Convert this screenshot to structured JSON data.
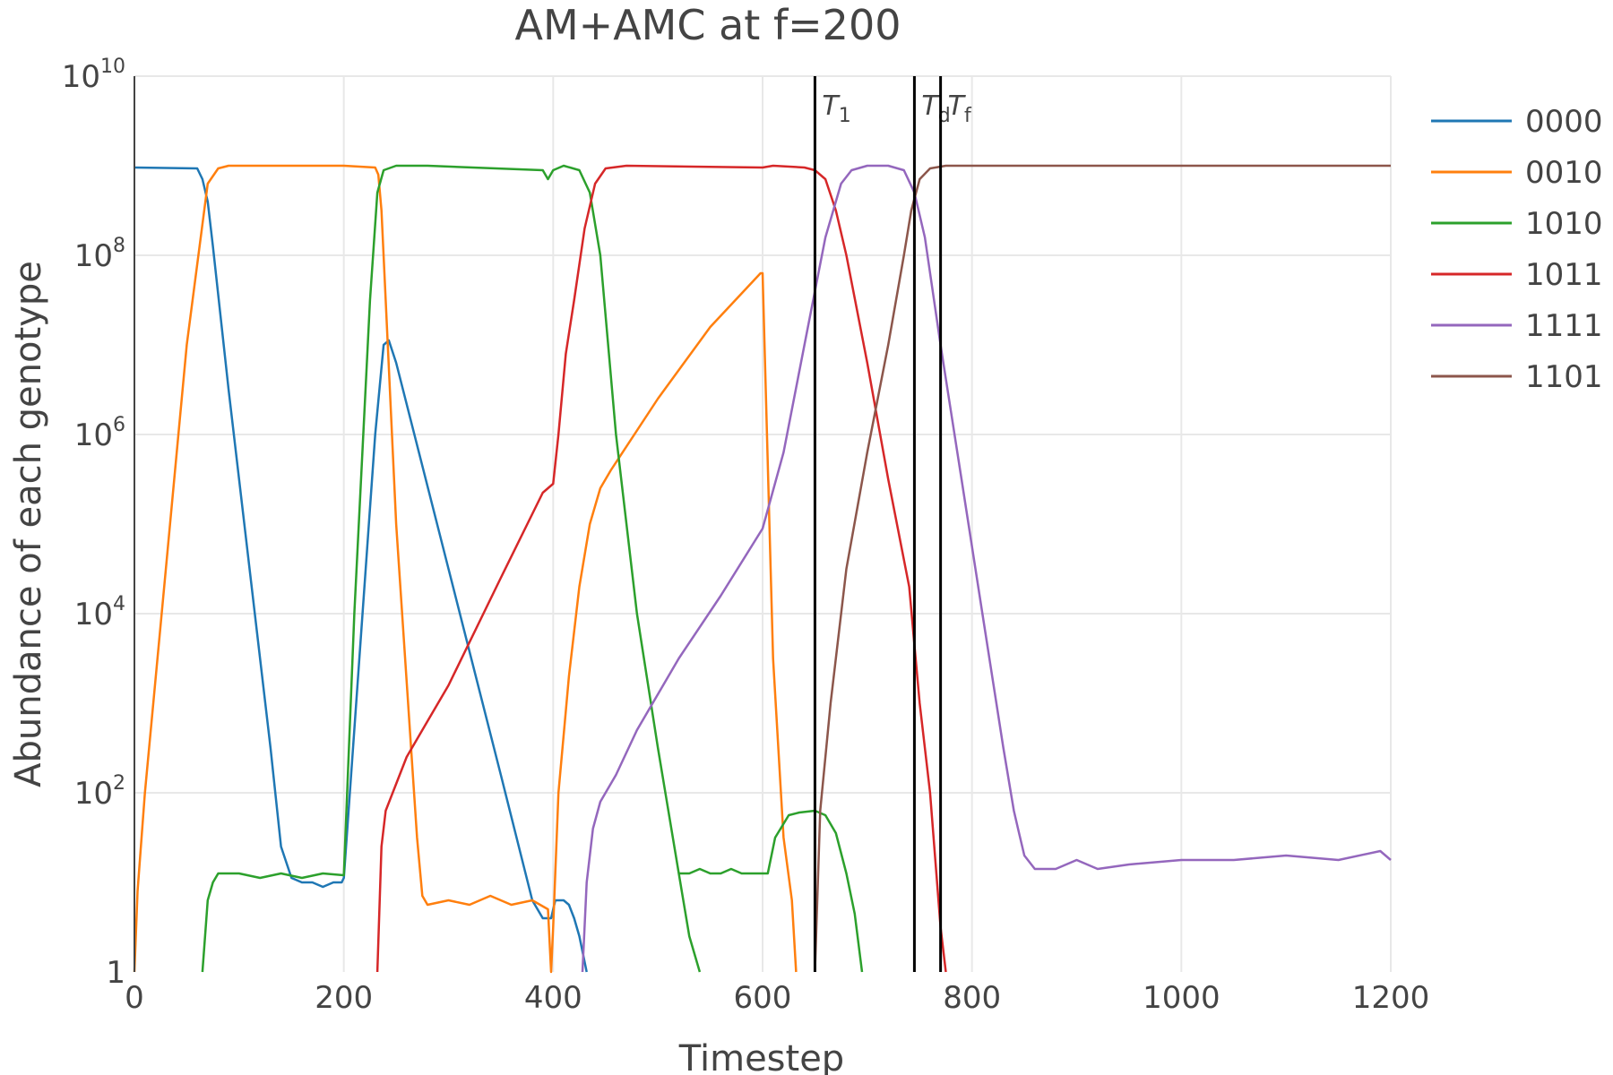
{
  "chart_data": {
    "type": "line",
    "title": "AM+AMC at f=200",
    "xlabel": "Timestep",
    "ylabel": "Abundance of each genotype",
    "xlim": [
      0,
      1200
    ],
    "ylim_log10": [
      0,
      10
    ],
    "y_scale": "log",
    "grid": true,
    "legend_placement": "top-right",
    "x_ticks": [
      "0",
      "200",
      "400",
      "600",
      "800",
      "1000",
      "1200"
    ],
    "x_tick_values": [
      0,
      200,
      400,
      600,
      800,
      1000,
      1200
    ],
    "y_ticks": [
      {
        "value": 0,
        "base": "1",
        "exp": ""
      },
      {
        "value": 2,
        "base": "10",
        "exp": "2"
      },
      {
        "value": 4,
        "base": "10",
        "exp": "4"
      },
      {
        "value": 6,
        "base": "10",
        "exp": "6"
      },
      {
        "value": 8,
        "base": "10",
        "exp": "8"
      },
      {
        "value": 10,
        "base": "10",
        "exp": "10"
      }
    ],
    "vertical_lines": [
      {
        "x": 650,
        "label": "T",
        "sub": "1"
      },
      {
        "x": 745,
        "label": "T",
        "sub": "d"
      },
      {
        "x": 770,
        "label": "T",
        "sub": "f"
      }
    ],
    "series": [
      {
        "name": "0000",
        "color": "#1f77b4",
        "points": [
          [
            0,
            8.98
          ],
          [
            60,
            8.97
          ],
          [
            65,
            8.85
          ],
          [
            70,
            8.6
          ],
          [
            75,
            8.1
          ],
          [
            90,
            6.5
          ],
          [
            130,
            2.5
          ],
          [
            140,
            1.4
          ],
          [
            150,
            1.05
          ],
          [
            160,
            1.0
          ],
          [
            170,
            1.0
          ],
          [
            180,
            0.95
          ],
          [
            190,
            1.0
          ],
          [
            198,
            1.0
          ],
          [
            200,
            1.05
          ],
          [
            230,
            6.0
          ],
          [
            238,
            7.0
          ],
          [
            243,
            7.05
          ],
          [
            250,
            6.8
          ],
          [
            300,
            4.5
          ],
          [
            350,
            2.2
          ],
          [
            380,
            0.8
          ],
          [
            390,
            0.6
          ],
          [
            398,
            0.6
          ],
          [
            402,
            0.8
          ],
          [
            410,
            0.8
          ],
          [
            415,
            0.75
          ],
          [
            420,
            0.6
          ],
          [
            425,
            0.4
          ],
          [
            432,
            0.0
          ]
        ]
      },
      {
        "name": "0010",
        "color": "#ff7f0e",
        "points": [
          [
            0,
            0.0
          ],
          [
            3,
            0.9
          ],
          [
            10,
            2.0
          ],
          [
            30,
            4.5
          ],
          [
            50,
            7.0
          ],
          [
            70,
            8.8
          ],
          [
            80,
            8.97
          ],
          [
            90,
            9.0
          ],
          [
            200,
            9.0
          ],
          [
            230,
            8.98
          ],
          [
            233,
            8.9
          ],
          [
            236,
            8.5
          ],
          [
            240,
            7.5
          ],
          [
            250,
            5.0
          ],
          [
            270,
            1.5
          ],
          [
            275,
            0.85
          ],
          [
            280,
            0.75
          ],
          [
            300,
            0.8
          ],
          [
            320,
            0.75
          ],
          [
            340,
            0.85
          ],
          [
            360,
            0.75
          ],
          [
            380,
            0.8
          ],
          [
            395,
            0.7
          ],
          [
            398,
            0.0
          ],
          [
            400,
            0.5
          ],
          [
            405,
            2.0
          ],
          [
            415,
            3.3
          ],
          [
            425,
            4.3
          ],
          [
            435,
            5.0
          ],
          [
            445,
            5.4
          ],
          [
            455,
            5.6
          ],
          [
            500,
            6.4
          ],
          [
            550,
            7.2
          ],
          [
            598,
            7.8
          ],
          [
            600,
            7.8
          ],
          [
            610,
            3.5
          ],
          [
            620,
            1.5
          ],
          [
            628,
            0.8
          ],
          [
            632,
            0.0
          ]
        ]
      },
      {
        "name": "1010",
        "color": "#2ca02c",
        "points": [
          [
            65,
            0.0
          ],
          [
            70,
            0.8
          ],
          [
            75,
            1.0
          ],
          [
            80,
            1.1
          ],
          [
            100,
            1.1
          ],
          [
            120,
            1.05
          ],
          [
            140,
            1.1
          ],
          [
            160,
            1.05
          ],
          [
            180,
            1.1
          ],
          [
            200,
            1.08
          ],
          [
            210,
            4.0
          ],
          [
            225,
            7.5
          ],
          [
            232,
            8.7
          ],
          [
            238,
            8.95
          ],
          [
            250,
            9.0
          ],
          [
            280,
            9.0
          ],
          [
            390,
            8.95
          ],
          [
            395,
            8.85
          ],
          [
            400,
            8.95
          ],
          [
            410,
            9.0
          ],
          [
            425,
            8.95
          ],
          [
            435,
            8.7
          ],
          [
            445,
            8.0
          ],
          [
            460,
            6.0
          ],
          [
            480,
            4.0
          ],
          [
            500,
            2.5
          ],
          [
            520,
            1.1
          ],
          [
            530,
            0.4
          ],
          [
            540,
            0.0
          ]
        ]
      },
      {
        "name": "1010_continued",
        "color": "#2ca02c",
        "points": [
          [
            520,
            1.1
          ],
          [
            530,
            1.1
          ],
          [
            540,
            1.15
          ],
          [
            550,
            1.1
          ],
          [
            560,
            1.1
          ],
          [
            570,
            1.15
          ],
          [
            580,
            1.1
          ],
          [
            600,
            1.1
          ],
          [
            605,
            1.1
          ],
          [
            612,
            1.5
          ],
          [
            625,
            1.75
          ],
          [
            635,
            1.78
          ],
          [
            650,
            1.8
          ],
          [
            660,
            1.75
          ],
          [
            670,
            1.55
          ],
          [
            680,
            1.1
          ],
          [
            688,
            0.65
          ],
          [
            695,
            0.0
          ]
        ]
      },
      {
        "name": "1011",
        "color": "#d62728",
        "points": [
          [
            232,
            0.0
          ],
          [
            236,
            1.4
          ],
          [
            240,
            1.8
          ],
          [
            250,
            2.1
          ],
          [
            260,
            2.4
          ],
          [
            280,
            2.8
          ],
          [
            300,
            3.2
          ],
          [
            350,
            4.4
          ],
          [
            390,
            5.35
          ],
          [
            400,
            5.45
          ],
          [
            405,
            6.0
          ],
          [
            412,
            6.9
          ],
          [
            420,
            7.5
          ],
          [
            430,
            8.3
          ],
          [
            440,
            8.8
          ],
          [
            450,
            8.97
          ],
          [
            470,
            9.0
          ],
          [
            600,
            8.98
          ],
          [
            610,
            9.0
          ],
          [
            640,
            8.98
          ],
          [
            650,
            8.95
          ],
          [
            660,
            8.85
          ],
          [
            670,
            8.5
          ],
          [
            680,
            8.0
          ],
          [
            700,
            6.8
          ],
          [
            720,
            5.5
          ],
          [
            740,
            4.3
          ],
          [
            750,
            3.0
          ],
          [
            760,
            2.0
          ],
          [
            770,
            0.5
          ],
          [
            775,
            0.0
          ]
        ]
      },
      {
        "name": "1111",
        "color": "#9467bd",
        "points": [
          [
            428,
            0.0
          ],
          [
            432,
            1.0
          ],
          [
            438,
            1.6
          ],
          [
            445,
            1.9
          ],
          [
            460,
            2.2
          ],
          [
            480,
            2.7
          ],
          [
            520,
            3.5
          ],
          [
            560,
            4.2
          ],
          [
            600,
            4.95
          ],
          [
            620,
            5.8
          ],
          [
            640,
            7.0
          ],
          [
            660,
            8.2
          ],
          [
            675,
            8.8
          ],
          [
            685,
            8.95
          ],
          [
            700,
            9.0
          ],
          [
            720,
            9.0
          ],
          [
            735,
            8.95
          ],
          [
            745,
            8.7
          ],
          [
            755,
            8.2
          ],
          [
            770,
            7.0
          ],
          [
            790,
            5.5
          ],
          [
            810,
            4.0
          ],
          [
            830,
            2.5
          ],
          [
            840,
            1.8
          ],
          [
            845,
            1.55
          ],
          [
            850,
            1.3
          ],
          [
            860,
            1.15
          ],
          [
            880,
            1.15
          ],
          [
            900,
            1.25
          ],
          [
            920,
            1.15
          ],
          [
            950,
            1.2
          ],
          [
            1000,
            1.25
          ],
          [
            1050,
            1.25
          ],
          [
            1100,
            1.3
          ],
          [
            1150,
            1.25
          ],
          [
            1190,
            1.35
          ],
          [
            1200,
            1.25
          ]
        ]
      },
      {
        "name": "1101",
        "color": "#8c564b",
        "points": [
          [
            650,
            0.0
          ],
          [
            655,
            1.8
          ],
          [
            665,
            3.0
          ],
          [
            680,
            4.5
          ],
          [
            700,
            5.8
          ],
          [
            720,
            7.0
          ],
          [
            735,
            8.0
          ],
          [
            742,
            8.5
          ],
          [
            750,
            8.85
          ],
          [
            760,
            8.97
          ],
          [
            775,
            9.0
          ],
          [
            1200,
            9.0
          ]
        ]
      }
    ],
    "legend": [
      "0000",
      "0010",
      "1010",
      "1011",
      "1111",
      "1101"
    ],
    "legend_colors": [
      "#1f77b4",
      "#ff7f0e",
      "#2ca02c",
      "#d62728",
      "#9467bd",
      "#8c564b"
    ]
  }
}
